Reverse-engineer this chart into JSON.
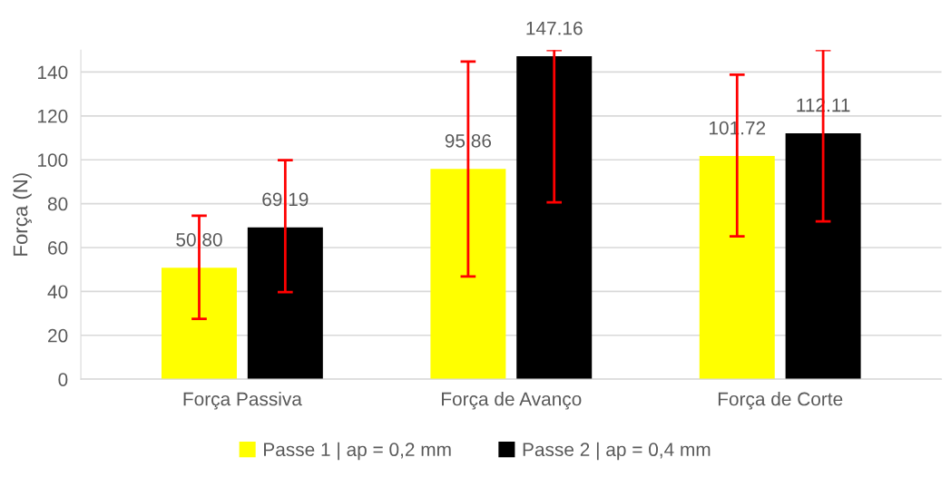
{
  "chart_data": {
    "type": "bar",
    "ylabel": "Força (N)",
    "categories": [
      "Força Passiva",
      "Força de Avanço",
      "Força de Corte"
    ],
    "series": [
      {
        "name": "Passe 1 | ap = 0,2 mm",
        "color": "#ffff00",
        "values": [
          50.8,
          95.86,
          101.72
        ],
        "value_labels": [
          "50.80",
          "95.86",
          "101.72"
        ],
        "errors": [
          [
            27.5,
            74.5
          ],
          [
            46.8,
            144.8
          ],
          [
            65.1,
            138.8
          ]
        ]
      },
      {
        "name": "Passe 2 | ap = 0,4 mm",
        "color": "#000000",
        "values": [
          69.19,
          147.16,
          112.11
        ],
        "value_labels": [
          "69.19",
          "147.16",
          "112.11"
        ],
        "errors": [
          [
            39.7,
            99.8
          ],
          [
            80.6,
            150
          ],
          [
            71.9,
            150
          ]
        ]
      }
    ],
    "ylim": [
      0,
      150
    ],
    "yticks": [
      0,
      20,
      40,
      60,
      80,
      100,
      120,
      140
    ],
    "grid": "y",
    "legend": "bottom"
  }
}
